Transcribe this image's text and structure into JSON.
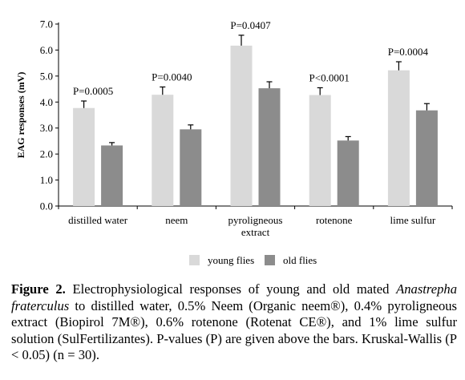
{
  "chart_data": {
    "type": "bar",
    "title": "",
    "xlabel": "",
    "ylabel": "EAG responses (mV)",
    "ylim": [
      0,
      7
    ],
    "yticks": [
      "0.0",
      "1.0",
      "2.0",
      "3.0",
      "4.0",
      "5.0",
      "6.0",
      "7.0"
    ],
    "categories": [
      [
        "distilled water"
      ],
      [
        "neem"
      ],
      [
        "pyroligneous",
        "extract"
      ],
      [
        "rotenone"
      ],
      [
        "lime sulfur"
      ]
    ],
    "series": [
      {
        "name": "young flies",
        "color": "#d9d9d9",
        "values": [
          3.77,
          4.28,
          6.17,
          4.27,
          5.22
        ],
        "errors": [
          0.27,
          0.3,
          0.4,
          0.28,
          0.33
        ]
      },
      {
        "name": "old flies",
        "color": "#8c8c8c",
        "values": [
          2.33,
          2.95,
          4.53,
          2.52,
          3.68
        ],
        "errors": [
          0.11,
          0.17,
          0.25,
          0.15,
          0.26
        ]
      }
    ],
    "annotations": [
      "P=0.0005",
      "P=0.0040",
      "P=0.0407",
      "P<0.0001",
      "P=0.0004"
    ],
    "grid": false,
    "legend": "bottom"
  },
  "caption": {
    "label": "Figure 2.",
    "text_1": " Electrophysiological responses of young and old mated ",
    "species": "Anastrepha fraterculus",
    "text_2": " to distilled water, 0.5% Neem (Organic neem®), 0.4% pyroligneous extract (Biopirol 7M®), 0.6% rotenone (Rotenat CE®), and 1% lime sulfur solution (SulFertilizantes). P-values (P) are given above the bars. Kruskal-Wallis (P < 0.05) (n = 30)."
  }
}
